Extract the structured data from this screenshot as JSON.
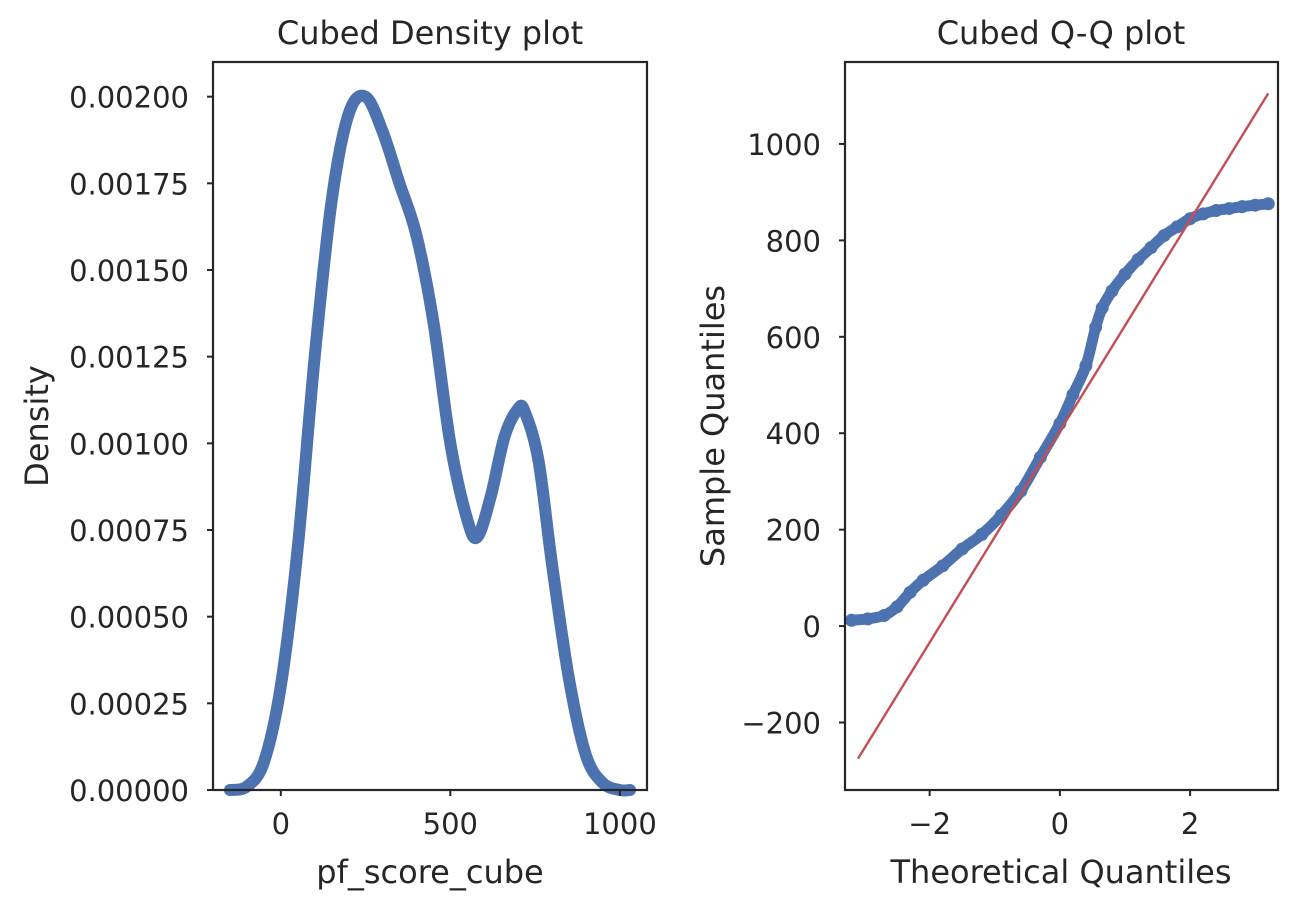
{
  "colors": {
    "series": "#4c72b0",
    "reference_line": "#c44e52",
    "axes": "#262626",
    "background": "#ffffff"
  },
  "chart_data": [
    {
      "type": "line",
      "title": "Cubed Density plot",
      "xlabel": "pf_score_cube",
      "ylabel": "Density",
      "xlim": [
        -200,
        1080
      ],
      "ylim": [
        0,
        0.0021
      ],
      "xticks": [
        0,
        500,
        1000
      ],
      "xtick_labels": [
        "0",
        "500",
        "1000"
      ],
      "yticks": [
        0,
        0.00025,
        0.0005,
        0.00075,
        0.001,
        0.00125,
        0.0015,
        0.00175,
        0.002
      ],
      "ytick_labels": [
        "0.00000",
        "0.00025",
        "0.00050",
        "0.00075",
        "0.00100",
        "0.00125",
        "0.00150",
        "0.00175",
        "0.00200"
      ],
      "grid": false,
      "series": [
        {
          "x": [
            -150,
            -100,
            -50,
            0,
            50,
            100,
            150,
            200,
            250,
            300,
            350,
            400,
            450,
            500,
            550,
            580,
            620,
            660,
            700,
            720,
            760,
            800,
            850,
            900,
            950,
            1000,
            1030
          ],
          "y": [
            0.0,
            1e-05,
            8e-05,
            0.0003,
            0.0007,
            0.00125,
            0.0017,
            0.00195,
            0.002,
            0.0019,
            0.00175,
            0.0016,
            0.00135,
            0.001,
            0.00078,
            0.00073,
            0.00085,
            0.00102,
            0.0011,
            0.00109,
            0.00095,
            0.00065,
            0.00032,
            0.0001,
            2e-05,
            0.0,
            0.0
          ]
        }
      ]
    },
    {
      "type": "scatter",
      "title": "Cubed Q-Q plot",
      "xlabel": "Theoretical Quantiles",
      "ylabel": "Sample Quantiles",
      "xlim": [
        -3.3,
        3.35
      ],
      "ylim": [
        -340,
        1170
      ],
      "xticks": [
        -2,
        0,
        2
      ],
      "xtick_labels": [
        "−2",
        "0",
        "2"
      ],
      "yticks": [
        -200,
        0,
        200,
        400,
        600,
        800,
        1000
      ],
      "ytick_labels": [
        "−200",
        "0",
        "200",
        "400",
        "600",
        "800",
        "1000"
      ],
      "grid": false,
      "sample_curve": {
        "x": [
          -3.2,
          -2.95,
          -2.7,
          -2.5,
          -2.3,
          -2.1,
          -1.8,
          -1.5,
          -1.2,
          -0.9,
          -0.6,
          -0.3,
          0.0,
          0.2,
          0.4,
          0.55,
          0.65,
          0.8,
          1.0,
          1.2,
          1.4,
          1.6,
          1.8,
          2.0,
          2.2,
          2.4,
          2.6,
          2.8,
          3.0,
          3.2
        ],
        "y": [
          12,
          15,
          22,
          40,
          70,
          95,
          125,
          160,
          190,
          230,
          280,
          350,
          420,
          480,
          540,
          620,
          660,
          695,
          730,
          760,
          785,
          810,
          828,
          845,
          855,
          862,
          866,
          870,
          873,
          876
        ]
      },
      "reference_line": {
        "x": [
          -3.1,
          3.2
        ],
        "y": [
          -275,
          1105
        ]
      }
    }
  ]
}
